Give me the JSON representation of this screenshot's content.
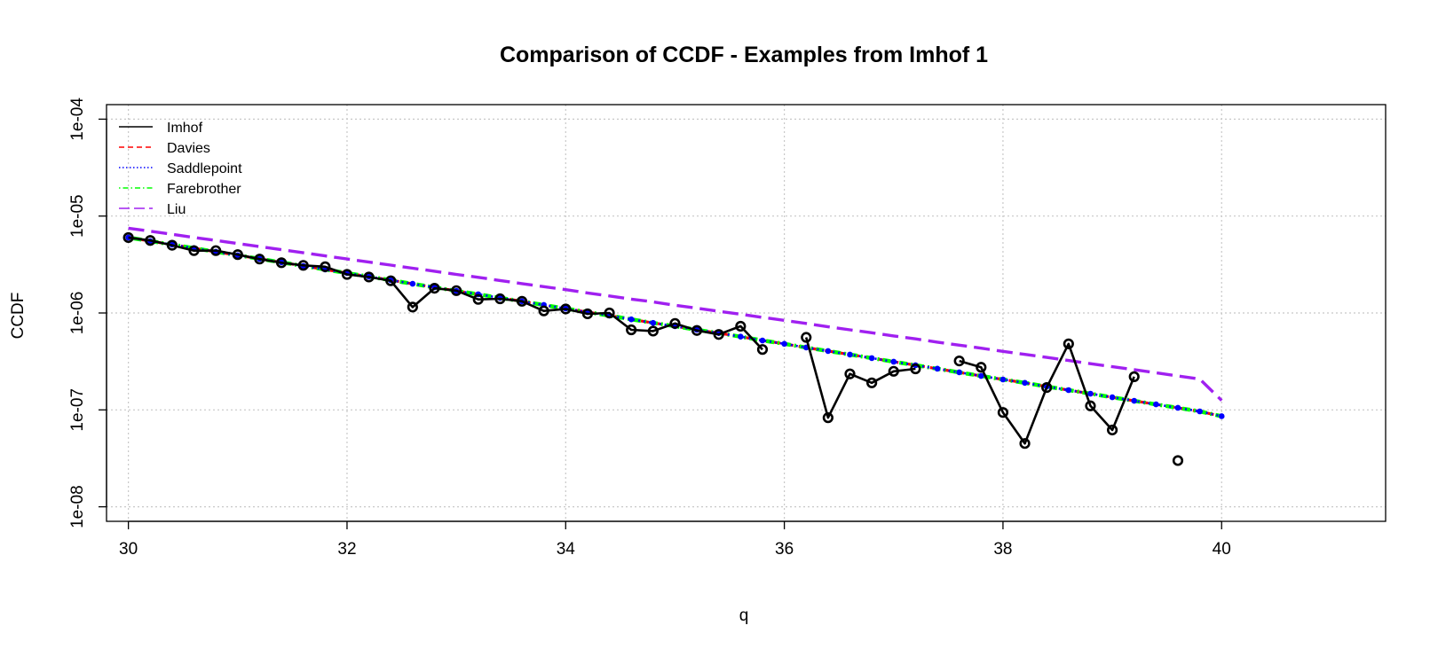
{
  "chart_data": {
    "type": "line",
    "title": "Comparison of CCDF  - Examples from Imhof 1",
    "xlabel": "q",
    "ylabel": "CCDF",
    "xlim": [
      29.8,
      41.5
    ],
    "ylim_log10": [
      -8.15,
      -3.85
    ],
    "y_scale": "log",
    "x_ticks": [
      30,
      32,
      34,
      36,
      38,
      40
    ],
    "x_tick_labels": [
      "30",
      "32",
      "34",
      "36",
      "38",
      "40"
    ],
    "y_ticks": [
      1e-08,
      1e-07,
      1e-06,
      1e-05,
      0.0001
    ],
    "y_tick_labels": [
      "1e-08",
      "1e-07",
      "1e-06",
      "1e-05",
      "1e-04"
    ],
    "grid": true,
    "legend_position": "top-left",
    "q": [
      30.0,
      30.2,
      30.4,
      30.6,
      30.8,
      31.0,
      31.2,
      31.4,
      31.6,
      31.8,
      32.0,
      32.2,
      32.4,
      32.6,
      32.8,
      33.0,
      33.2,
      33.4,
      33.6,
      33.8,
      34.0,
      34.2,
      34.4,
      34.6,
      34.8,
      35.0,
      35.2,
      35.4,
      35.6,
      35.8,
      36.0,
      36.2,
      36.4,
      36.6,
      36.8,
      37.0,
      37.2,
      37.4,
      37.6,
      37.8,
      38.0,
      38.2,
      38.4,
      38.6,
      38.8,
      39.0,
      39.2,
      39.4,
      39.6,
      39.8,
      40.0
    ],
    "series": [
      {
        "name": "Imhof",
        "color": "#000000",
        "dash": "solid",
        "points": true,
        "values": [
          6e-06,
          5.6e-06,
          5e-06,
          4.4e-06,
          4.4e-06,
          4e-06,
          3.6e-06,
          3.3e-06,
          3.1e-06,
          3e-06,
          2.5e-06,
          2.35e-06,
          2.15e-06,
          1.15e-06,
          1.8e-06,
          1.7e-06,
          1.38e-06,
          1.4e-06,
          1.32e-06,
          1.05e-06,
          1.1e-06,
          9.8e-07,
          1e-06,
          6.7e-07,
          6.5e-07,
          7.8e-07,
          6.6e-07,
          6e-07,
          7.3e-07,
          4.2e-07,
          null,
          5.6e-07,
          8.3e-08,
          2.35e-07,
          1.9e-07,
          2.5e-07,
          2.65e-07,
          null,
          3.2e-07,
          2.75e-07,
          9.4e-08,
          4.5e-08,
          1.7e-07,
          4.8e-07,
          1.1e-07,
          6.2e-08,
          2.2e-07,
          null,
          3e-08,
          null,
          null
        ]
      },
      {
        "name": "Davies",
        "color": "#ff0000",
        "dash": "dashed",
        "points": false,
        "values": [
          6e-06,
          5.52e-06,
          5.07e-06,
          4.66e-06,
          4.28e-06,
          3.94e-06,
          3.62e-06,
          3.33e-06,
          3.06e-06,
          2.81e-06,
          2.58e-06,
          2.37e-06,
          2.18e-06,
          2e-06,
          1.84e-06,
          1.69e-06,
          1.56e-06,
          1.43e-06,
          1.32e-06,
          1.21e-06,
          1.11e-06,
          1.02e-06,
          9.4e-07,
          8.6e-07,
          7.9e-07,
          7.3e-07,
          6.7e-07,
          6.2e-07,
          5.7e-07,
          5.2e-07,
          4.8e-07,
          4.4e-07,
          4.05e-07,
          3.72e-07,
          3.42e-07,
          3.14e-07,
          2.89e-07,
          2.66e-07,
          2.44e-07,
          2.24e-07,
          2.06e-07,
          1.9e-07,
          1.74e-07,
          1.6e-07,
          1.47e-07,
          1.35e-07,
          1.24e-07,
          1.14e-07,
          1.05e-07,
          9.65e-08,
          8.6e-08
        ]
      },
      {
        "name": "Saddlepoint",
        "color": "#0000ff",
        "dash": "dotted",
        "points": true,
        "values": [
          6e-06,
          5.52e-06,
          5.07e-06,
          4.66e-06,
          4.28e-06,
          3.94e-06,
          3.62e-06,
          3.33e-06,
          3.06e-06,
          2.81e-06,
          2.58e-06,
          2.37e-06,
          2.18e-06,
          2e-06,
          1.84e-06,
          1.69e-06,
          1.56e-06,
          1.43e-06,
          1.32e-06,
          1.21e-06,
          1.11e-06,
          1.02e-06,
          9.4e-07,
          8.6e-07,
          7.9e-07,
          7.3e-07,
          6.7e-07,
          6.2e-07,
          5.7e-07,
          5.2e-07,
          4.8e-07,
          4.4e-07,
          4.05e-07,
          3.72e-07,
          3.42e-07,
          3.14e-07,
          2.89e-07,
          2.66e-07,
          2.44e-07,
          2.24e-07,
          2.06e-07,
          1.9e-07,
          1.74e-07,
          1.6e-07,
          1.47e-07,
          1.35e-07,
          1.24e-07,
          1.14e-07,
          1.05e-07,
          9.65e-08,
          8.6e-08
        ]
      },
      {
        "name": "Farebrother",
        "color": "#00ff00",
        "dash": "dotdash",
        "points": false,
        "values": [
          6e-06,
          5.52e-06,
          5.07e-06,
          4.66e-06,
          4.28e-06,
          3.94e-06,
          3.62e-06,
          3.33e-06,
          3.06e-06,
          2.81e-06,
          2.58e-06,
          2.37e-06,
          2.18e-06,
          2e-06,
          1.84e-06,
          1.69e-06,
          1.56e-06,
          1.43e-06,
          1.32e-06,
          1.21e-06,
          1.11e-06,
          1.02e-06,
          9.4e-07,
          8.6e-07,
          7.9e-07,
          7.3e-07,
          6.7e-07,
          6.2e-07,
          5.7e-07,
          5.2e-07,
          4.8e-07,
          4.4e-07,
          4.05e-07,
          3.72e-07,
          3.42e-07,
          3.14e-07,
          2.89e-07,
          2.66e-07,
          2.44e-07,
          2.24e-07,
          2.06e-07,
          1.9e-07,
          1.74e-07,
          1.6e-07,
          1.47e-07,
          1.35e-07,
          1.24e-07,
          1.14e-07,
          1.05e-07,
          9.65e-08,
          8.6e-08
        ]
      },
      {
        "name": "Liu",
        "color": "#a020f0",
        "dash": "longdash",
        "points": false,
        "values": [
          7.5e-06,
          6.97e-06,
          6.48e-06,
          6.02e-06,
          5.6e-06,
          5.2e-06,
          4.84e-06,
          4.5e-06,
          4.18e-06,
          3.88e-06,
          3.61e-06,
          3.35e-06,
          3.12e-06,
          2.9e-06,
          2.7e-06,
          2.5e-06,
          2.33e-06,
          2.16e-06,
          2.01e-06,
          1.87e-06,
          1.74e-06,
          1.61e-06,
          1.5e-06,
          1.39e-06,
          1.3e-06,
          1.2e-06,
          1.12e-06,
          1.04e-06,
          9.7e-07,
          9e-07,
          8.4e-07,
          7.8e-07,
          7.2e-07,
          6.7e-07,
          6.25e-07,
          5.8e-07,
          5.4e-07,
          5e-07,
          4.65e-07,
          4.33e-07,
          4.02e-07,
          3.74e-07,
          3.48e-07,
          3.23e-07,
          3e-07,
          2.79e-07,
          2.6e-07,
          2.41e-07,
          2.24e-07,
          2.08e-07,
          1.25e-07
        ]
      }
    ]
  }
}
